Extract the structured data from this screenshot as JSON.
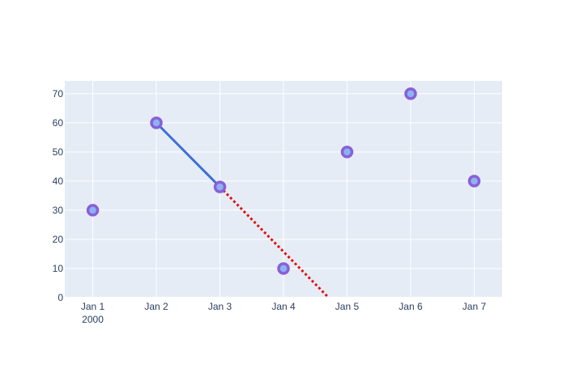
{
  "chart_data": {
    "type": "scatter",
    "x": [
      "2000-01-01",
      "2000-01-02",
      "2000-01-03",
      "2000-01-04",
      "2000-01-05",
      "2000-01-06",
      "2000-01-07"
    ],
    "x_tick_labels": [
      "Jan 1",
      "Jan 2",
      "Jan 3",
      "Jan 4",
      "Jan 5",
      "Jan 6",
      "Jan 7"
    ],
    "x_year_label": "2000",
    "y_ticks": [
      0,
      10,
      20,
      30,
      40,
      50,
      60,
      70
    ],
    "xlim": [
      "2000-01-00.56",
      "2000-01-07.44"
    ],
    "ylim": [
      0,
      74.4
    ],
    "grid": true,
    "points": {
      "values": [
        30,
        60,
        38,
        10,
        50,
        70,
        40
      ],
      "marker_fill": "#8ab4f0",
      "marker_border": "#8a5fd8"
    },
    "segments": [
      {
        "x": [
          "2000-01-02",
          "2000-01-03"
        ],
        "y": [
          60,
          38
        ],
        "color": "#3c6fd6",
        "style": "solid"
      },
      {
        "x": [
          "2000-01-03",
          "2000-01-04.71"
        ],
        "y": [
          38,
          0
        ],
        "color": "#e01010",
        "style": "dotted"
      }
    ],
    "colors": {
      "plot_background": "#e5ecf6",
      "grid": "#ffffff",
      "text": "#2a3f5f"
    }
  }
}
